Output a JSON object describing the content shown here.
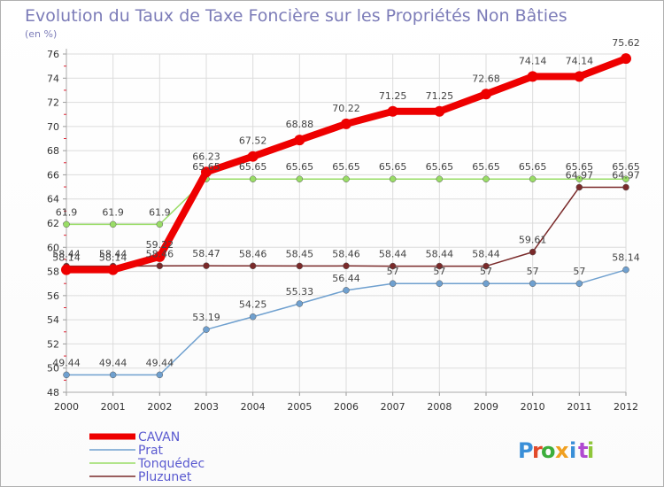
{
  "chart_data": {
    "type": "line",
    "title": "Evolution du Taux de Taxe Foncière sur les Propriétés Non Bâties",
    "subtitle": "(en %)",
    "xlabel": "",
    "ylabel": "",
    "x": [
      "2000",
      "2001",
      "2002",
      "2003",
      "2004",
      "2005",
      "2006",
      "2007",
      "2008",
      "2009",
      "2010",
      "2011",
      "2012"
    ],
    "ylim": [
      48,
      76
    ],
    "yticks": [
      "48",
      "50",
      "52",
      "54",
      "56",
      "58",
      "60",
      "62",
      "64",
      "66",
      "68",
      "70",
      "72",
      "74",
      "76"
    ],
    "grid": true,
    "legend_position": "bottom-left",
    "series": [
      {
        "name": "CAVAN",
        "color": "#ee0000",
        "values": [
          58.14,
          58.14,
          59.22,
          66.23,
          67.52,
          68.88,
          70.22,
          71.25,
          71.25,
          72.68,
          74.14,
          74.14,
          75.62
        ],
        "labels": [
          "58.14",
          "58.14",
          "59.22",
          "66.23",
          "67.52",
          "68.88",
          "70.22",
          "71.25",
          "71.25",
          "72.68",
          "74.14",
          "74.14",
          "75.62"
        ]
      },
      {
        "name": "Prat",
        "color": "#6fa0cf",
        "values": [
          49.44,
          49.44,
          49.44,
          53.19,
          54.25,
          55.33,
          56.44,
          57,
          57,
          57,
          57,
          57,
          58.14
        ],
        "labels": [
          "49.44",
          "49.44",
          "49.44",
          "53.19",
          "54.25",
          "55.33",
          "56.44",
          "57",
          "57",
          "57",
          "57",
          "57",
          "58.14"
        ]
      },
      {
        "name": "Tonquédec",
        "color": "#99dd66",
        "values": [
          61.9,
          61.9,
          61.9,
          65.65,
          65.65,
          65.65,
          65.65,
          65.65,
          65.65,
          65.65,
          65.65,
          65.65,
          65.65
        ],
        "labels": [
          "61.9",
          "61.9",
          "61.9",
          "65.65",
          "65.65",
          "65.65",
          "65.65",
          "65.65",
          "65.65",
          "65.65",
          "65.65",
          "65.65",
          "65.65"
        ]
      },
      {
        "name": "Pluzunet",
        "color": "#7a2a2a",
        "values": [
          58.44,
          58.44,
          58.46,
          58.47,
          58.46,
          58.45,
          58.46,
          58.44,
          58.44,
          58.44,
          59.61,
          64.97,
          64.97
        ],
        "labels": [
          "58.44",
          "58.44",
          "58.46",
          "58.47",
          "58.46",
          "58.45",
          "58.46",
          "58.44",
          "58.44",
          "58.44",
          "59.61",
          "64.97",
          "64.97"
        ]
      }
    ]
  },
  "logo": {
    "letters": [
      "P",
      "r",
      "o",
      "x",
      "i",
      "t",
      "i"
    ],
    "colors": [
      "#3a8fd8",
      "#e24a2a",
      "#3cae3c",
      "#f0a020",
      "#3a8fd8",
      "#b04ad0",
      "#8fc63a"
    ]
  }
}
